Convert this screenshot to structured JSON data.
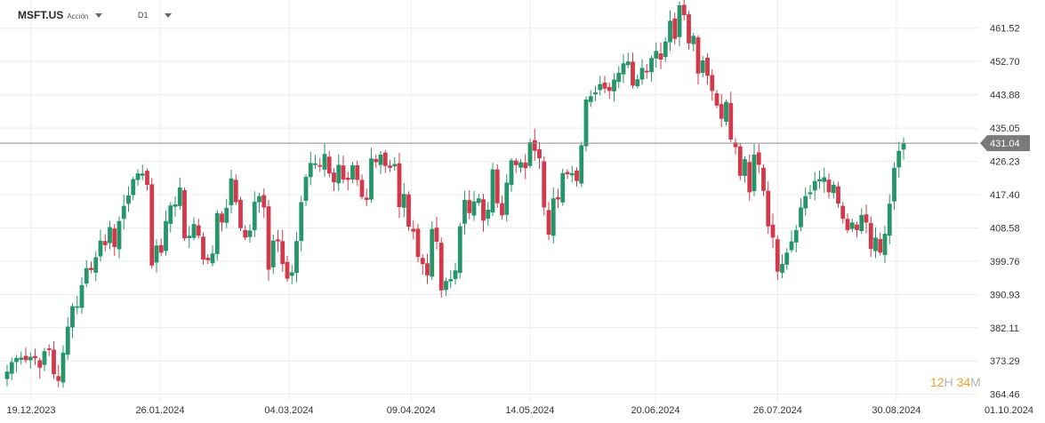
{
  "header": {
    "symbol": "MSFT.US",
    "instrument_type": "Acción",
    "timeframe": "D1"
  },
  "countdown": {
    "hours": "12",
    "hours_unit": "H",
    "minutes": "34",
    "minutes_unit": "M"
  },
  "colors": {
    "up": "#26966a",
    "down": "#d23a4b",
    "grid": "#ececec",
    "price_line": "#8a8a8a",
    "price_tag": "#7a7a7a"
  },
  "chart_data": {
    "type": "candlestick",
    "title": "",
    "xlabel": "",
    "ylabel": "",
    "ylim": [
      362.5,
      469.0
    ],
    "grid": true,
    "y_ticks": [
      364.46,
      373.29,
      382.11,
      390.93,
      399.76,
      408.58,
      417.4,
      426.23,
      435.05,
      443.88,
      452.7,
      461.52
    ],
    "x_tick_labels": [
      {
        "date": "2023-12-19",
        "label": "19.12.2023"
      },
      {
        "date": "2024-01-26",
        "label": "26.01.2024"
      },
      {
        "date": "2024-03-04",
        "label": "04.03.2024"
      },
      {
        "date": "2024-04-09",
        "label": "09.04.2024"
      },
      {
        "date": "2024-05-14",
        "label": "14.05.2024"
      },
      {
        "date": "2024-06-20",
        "label": "20.06.2024"
      },
      {
        "date": "2024-07-26",
        "label": "26.07.2024"
      },
      {
        "date": "2024-08-30",
        "label": "30.08.2024"
      },
      {
        "date": "2024-10-01",
        "label": "01.10.2024"
      }
    ],
    "current_price": 431.04,
    "close": [
      370.5,
      373.0,
      374.1,
      374.2,
      373.5,
      374.4,
      374.0,
      371.5,
      375.9,
      376.2,
      369.8,
      368.0,
      375.5,
      382.4,
      387.8,
      387.8,
      393.4,
      397.9,
      397.4,
      400.8,
      405.2,
      404.0,
      408.8,
      403.5,
      410.4,
      414.4,
      417.2,
      421.5,
      423.0,
      423.0,
      420.0,
      398.6,
      403.9,
      402.0,
      410.4,
      414.5,
      414.8,
      419.3,
      405.8,
      406.5,
      409.6,
      406.5,
      400.2,
      400.0,
      401.8,
      412.5,
      410.0,
      413.9,
      421.7,
      415.4,
      408.5,
      406.0,
      407.9,
      415.5,
      417.0,
      414.0,
      397.5,
      405.2,
      405.0,
      399.0,
      395.1,
      396.8,
      405.1,
      415.4,
      422.1,
      425.8,
      425.7,
      424.8,
      428.2,
      423.0,
      420.7,
      425.3,
      421.4,
      421.3,
      425.2,
      421.3,
      416.8,
      416.0,
      427.0,
      426.0,
      428.0,
      425.0,
      424.5,
      425.5,
      414.1,
      417.6,
      408.9,
      407.6,
      400.9,
      399.0,
      396.0,
      408.3,
      404.9,
      392.0,
      394.5,
      395.0,
      397.3,
      409.0,
      416.0,
      412.5,
      415.6,
      416.4,
      410.5,
      413.4,
      424.1,
      415.1,
      411.9,
      420.6,
      426.5,
      425.2,
      426.0,
      424.4,
      431.3,
      429.0,
      427.0,
      414.0,
      406.8,
      416.4,
      416.1,
      423.1,
      422.8,
      423.1,
      421.0,
      430.5,
      442.6,
      443.5,
      444.5,
      446.7,
      445.5,
      444.9,
      447.9,
      449.7,
      452.2,
      452.7,
      446.3,
      448.0,
      451.0,
      449.8,
      453.6,
      455.5,
      453.2,
      458.0,
      463.5,
      458.7,
      467.6,
      465.0,
      457.5,
      459.5,
      449.5,
      453.0,
      448.9,
      444.9,
      441.0,
      437.5,
      442.0,
      432.0,
      430.0,
      422.4,
      426.8,
      418.0,
      428.0,
      425.3,
      418.4,
      409.0,
      406.0,
      397.0,
      399.0,
      402.0,
      405.0,
      408.0,
      414.0,
      417.0,
      418.0,
      421.0,
      421.5,
      422.0,
      418.0,
      420.0,
      415.0,
      411.0,
      408.0,
      410.0,
      408.0,
      412.0,
      410.0,
      403.0,
      406.0,
      402.0,
      407.0,
      415.0,
      424.5,
      429.0,
      431.0
    ],
    "open_high_low": "approximate daily OHLC series"
  }
}
